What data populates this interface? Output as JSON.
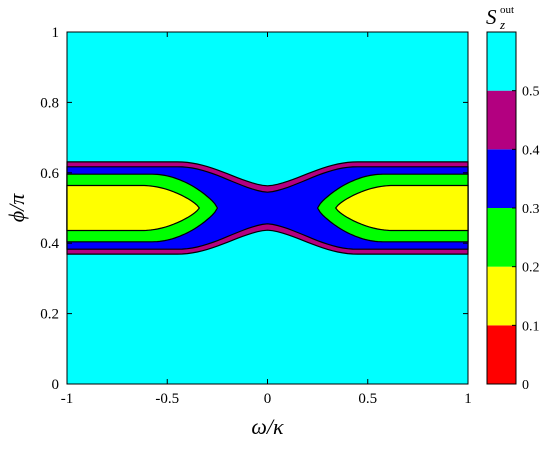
{
  "chart_data": {
    "type": "heatmap",
    "subtype": "filled-contour",
    "xlabel": "ω/κ",
    "ylabel": "ϕ/π",
    "xlim": [
      -1,
      1
    ],
    "ylim": [
      0,
      1
    ],
    "x_ticks": [
      "-1",
      "-0.5",
      "0",
      "0.5",
      "1"
    ],
    "y_ticks": [
      "0",
      "0.2",
      "0.4",
      "0.6",
      "0.8",
      "1"
    ],
    "colorbar": {
      "title_main": "S",
      "title_sub": "z",
      "title_sup": "out",
      "ticks": [
        "0",
        "0.1",
        "0.2",
        "0.3",
        "0.4",
        "0.5"
      ],
      "levels": [
        {
          "range": [
            0,
            0.1
          ],
          "color": "#ff0000"
        },
        {
          "range": [
            0.1,
            0.2
          ],
          "color": "#ffff00"
        },
        {
          "range": [
            0.2,
            0.3
          ],
          "color": "#00ff00"
        },
        {
          "range": [
            0.3,
            0.4
          ],
          "color": "#0000ff"
        },
        {
          "range": [
            0.4,
            0.5
          ],
          "color": "#b30080"
        },
        {
          "range": [
            0.5,
            0.6
          ],
          "color": "#00ffff"
        }
      ]
    },
    "contours": [
      {
        "level": 0.5,
        "color": "#b30080",
        "center_phi": 0.5,
        "halfwidth_edge": 0.131,
        "halfwidth_center": 0.063
      },
      {
        "level": 0.4,
        "color": "#0000ff",
        "center_phi": 0.5,
        "halfwidth_edge": 0.117,
        "halfwidth_center": 0.045
      },
      {
        "level": 0.3,
        "color": "#00ff00",
        "center_phi": 0.5,
        "halfwidth_edge": 0.096,
        "omega_inner": 0.25
      },
      {
        "level": 0.2,
        "color": "#ffff00",
        "center_phi": 0.5,
        "halfwidth_edge": 0.064,
        "omega_inner": 0.34
      }
    ]
  }
}
